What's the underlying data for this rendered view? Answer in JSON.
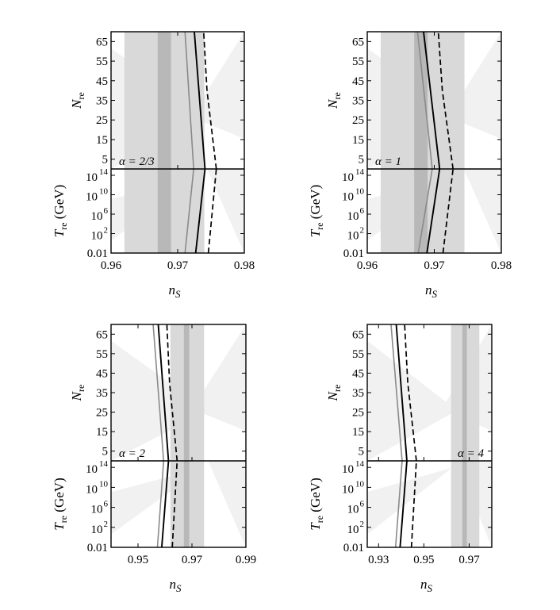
{
  "colors": {
    "band_light": "#f1f1f1",
    "band_mid": "#d9d9d9",
    "band_dark": "#b8b8b8",
    "line_gray": "#8a8a8a",
    "line_black": "#000000",
    "frame": "#000000"
  },
  "chart_data": [
    {
      "type": "line",
      "annotation": "α = 2/3",
      "annotation_position": "bottom-left",
      "xlabel": "n",
      "xlabel_sub": "S",
      "xlim": [
        0.96,
        0.98
      ],
      "xticks": [
        "0.96",
        "0.97",
        "0.98"
      ],
      "xtick_values": [
        0.96,
        0.97,
        0.98
      ],
      "top": {
        "ylabel": "N",
        "ylabel_sub": "re",
        "ylim": [
          0,
          70
        ],
        "yticks": [
          "5",
          "15",
          "25",
          "35",
          "45",
          "55",
          "65"
        ],
        "ytick_values": [
          5,
          15,
          25,
          35,
          45,
          55,
          65
        ],
        "series": [
          {
            "style": "gray",
            "x": [
              0.9724,
              0.9711
            ],
            "y": [
              0,
              70
            ]
          },
          {
            "style": "solid",
            "x": [
              0.9741,
              0.9725
            ],
            "y": [
              0,
              70
            ]
          },
          {
            "style": "dashed",
            "x": [
              0.9758,
              0.9744,
              0.9739
            ],
            "y": [
              0,
              40,
              70
            ]
          }
        ]
      },
      "bottom": {
        "ylabel": "T",
        "ylabel_sub": "re",
        "ylabel_unit": " (GeV)",
        "yticks": [
          "0.01",
          "10",
          "10",
          "10",
          "10"
        ],
        "ytick_exponents": [
          "",
          "2",
          "6",
          "10",
          "14"
        ],
        "ytick_values": [
          -2,
          2,
          6,
          10,
          14
        ],
        "ylim": [
          -2,
          15.3
        ],
        "series": [
          {
            "style": "gray",
            "x": [
              0.9711,
              0.9724
            ],
            "y": [
              -2,
              15.3
            ]
          },
          {
            "style": "solid",
            "x": [
              0.9727,
              0.9741
            ],
            "y": [
              -2,
              15.3
            ]
          },
          {
            "style": "dashed",
            "x": [
              0.9746,
              0.9758
            ],
            "y": [
              -2,
              15.3
            ]
          }
        ]
      },
      "bands": {
        "light": [
          0.962,
          0.974
        ],
        "dark": [
          0.967,
          0.969
        ]
      }
    },
    {
      "type": "line",
      "annotation": "α = 1",
      "annotation_position": "bottom-left",
      "xlabel": "n",
      "xlabel_sub": "S",
      "xlim": [
        0.96,
        0.98
      ],
      "xticks": [
        "0.96",
        "0.97",
        "0.98"
      ],
      "xtick_values": [
        0.96,
        0.97,
        0.98
      ],
      "top": {
        "ylabel": "N",
        "ylabel_sub": "re",
        "ylim": [
          0,
          70
        ],
        "yticks": [
          "5",
          "15",
          "25",
          "35",
          "45",
          "55",
          "65"
        ],
        "ytick_values": [
          5,
          15,
          25,
          35,
          45,
          55,
          65
        ],
        "series": [
          {
            "style": "gray",
            "x": [
              0.9697,
              0.9675
            ],
            "y": [
              0,
              70
            ]
          },
          {
            "style": "solid",
            "x": [
              0.9708,
              0.9684
            ],
            "y": [
              0,
              70
            ]
          },
          {
            "style": "dashed",
            "x": [
              0.9728,
              0.9712,
              0.9706
            ],
            "y": [
              0,
              40,
              70
            ]
          }
        ]
      },
      "bottom": {
        "ylabel": "T",
        "ylabel_sub": "re",
        "ylabel_unit": " (GeV)",
        "yticks": [
          "0.01",
          "10",
          "10",
          "10",
          "10"
        ],
        "ytick_exponents": [
          "",
          "2",
          "6",
          "10",
          "14"
        ],
        "ytick_values": [
          -2,
          2,
          6,
          10,
          14
        ],
        "ylim": [
          -2,
          15.3
        ],
        "series": [
          {
            "style": "gray",
            "x": [
              0.9676,
              0.9697
            ],
            "y": [
              -2,
              15.3
            ]
          },
          {
            "style": "solid",
            "x": [
              0.9689,
              0.9708
            ],
            "y": [
              -2,
              15.3
            ]
          },
          {
            "style": "dashed",
            "x": [
              0.9713,
              0.9728
            ],
            "y": [
              -2,
              15.3
            ]
          }
        ]
      },
      "bands": {
        "light": [
          0.962,
          0.9745
        ],
        "dark": [
          0.967,
          0.969
        ]
      }
    },
    {
      "type": "line",
      "annotation": "α = 2",
      "annotation_position": "bottom-left",
      "xlabel": "n",
      "xlabel_sub": "S",
      "xlim": [
        0.94,
        0.99
      ],
      "xticks": [
        "0.95",
        "0.97",
        "0.99"
      ],
      "xtick_values": [
        0.95,
        0.97,
        0.99
      ],
      "top": {
        "ylabel": "N",
        "ylabel_sub": "re",
        "ylim": [
          0,
          70
        ],
        "yticks": [
          "5",
          "15",
          "25",
          "35",
          "45",
          "55",
          "65"
        ],
        "ytick_values": [
          5,
          15,
          25,
          35,
          45,
          55,
          65
        ],
        "series": [
          {
            "style": "gray",
            "x": [
              0.9595,
              0.9556
            ],
            "y": [
              0,
              70
            ]
          },
          {
            "style": "solid",
            "x": [
              0.9613,
              0.9575
            ],
            "y": [
              0,
              70
            ]
          },
          {
            "style": "dashed",
            "x": [
              0.9645,
              0.9617,
              0.9607
            ],
            "y": [
              0,
              40,
              70
            ]
          }
        ]
      },
      "bottom": {
        "ylabel": "T",
        "ylabel_sub": "re",
        "ylabel_unit": " (GeV)",
        "yticks": [
          "0.01",
          "10",
          "10",
          "10",
          "10"
        ],
        "ytick_exponents": [
          "",
          "2",
          "6",
          "10",
          "14"
        ],
        "ytick_values": [
          -2,
          2,
          6,
          10,
          14
        ],
        "ylim": [
          -2,
          15.3
        ],
        "series": [
          {
            "style": "gray",
            "x": [
              0.9572,
              0.9595
            ],
            "y": [
              -2,
              15.3
            ]
          },
          {
            "style": "solid",
            "x": [
              0.9588,
              0.9613
            ],
            "y": [
              -2,
              15.3
            ]
          },
          {
            "style": "dashed",
            "x": [
              0.9627,
              0.9645
            ],
            "y": [
              -2,
              15.3
            ]
          }
        ]
      },
      "bands": {
        "light": [
          0.962,
          0.9745
        ],
        "dark": [
          0.967,
          0.969
        ]
      }
    },
    {
      "type": "line",
      "annotation": "α = 4",
      "annotation_position": "bottom-right",
      "xlabel": "n",
      "xlabel_sub": "S",
      "xlim": [
        0.925,
        0.98
      ],
      "xticks": [
        "0.93",
        "0.95",
        "0.97"
      ],
      "xtick_values": [
        0.93,
        0.95,
        0.97
      ],
      "top": {
        "ylabel": "N",
        "ylabel_sub": "re",
        "ylim": [
          0,
          70
        ],
        "yticks": [
          "5",
          "15",
          "25",
          "35",
          "45",
          "55",
          "65"
        ],
        "ytick_values": [
          5,
          15,
          25,
          35,
          45,
          55,
          65
        ],
        "series": [
          {
            "style": "gray",
            "x": [
              0.9404,
              0.9355
            ],
            "y": [
              0,
              70
            ]
          },
          {
            "style": "solid",
            "x": [
              0.9425,
              0.9378
            ],
            "y": [
              0,
              70
            ]
          },
          {
            "style": "dashed",
            "x": [
              0.9467,
              0.9429,
              0.9415
            ],
            "y": [
              0,
              40,
              70
            ]
          }
        ]
      },
      "bottom": {
        "ylabel": "T",
        "ylabel_sub": "re",
        "ylabel_unit": " (GeV)",
        "yticks": [
          "0.01",
          "10",
          "10",
          "10",
          "10"
        ],
        "ytick_exponents": [
          "",
          "2",
          "6",
          "10",
          "14"
        ],
        "ytick_values": [
          -2,
          2,
          6,
          10,
          14
        ],
        "ylim": [
          -2,
          15.3
        ],
        "series": [
          {
            "style": "gray",
            "x": [
              0.9375,
              0.9404
            ],
            "y": [
              -2,
              15.3
            ]
          },
          {
            "style": "solid",
            "x": [
              0.9395,
              0.9425
            ],
            "y": [
              -2,
              15.3
            ]
          },
          {
            "style": "dashed",
            "x": [
              0.9445,
              0.9467
            ],
            "y": [
              -2,
              15.3
            ]
          }
        ]
      },
      "bands": {
        "light": [
          0.962,
          0.9745
        ],
        "dark": [
          0.967,
          0.969
        ]
      }
    }
  ]
}
